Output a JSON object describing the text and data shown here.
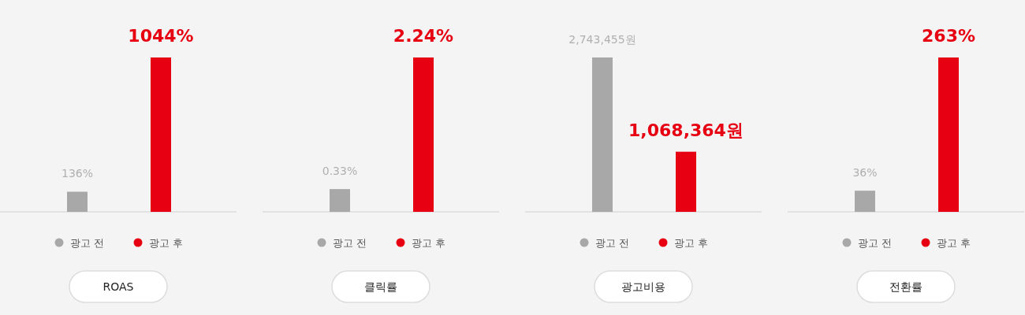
{
  "chart_data": [
    {
      "type": "bar",
      "title": "ROAS",
      "categories": [
        "광고 전",
        "광고 후"
      ],
      "colors": [
        "#a8a8a8",
        "#e60012"
      ],
      "values": [
        136,
        1044
      ],
      "value_labels": [
        "136%",
        "1044%"
      ]
    },
    {
      "type": "bar",
      "title": "클릭률",
      "categories": [
        "광고 전",
        "광고 후"
      ],
      "colors": [
        "#a8a8a8",
        "#e60012"
      ],
      "values": [
        0.33,
        2.24
      ],
      "value_labels": [
        "0.33%",
        "2.24%"
      ]
    },
    {
      "type": "bar",
      "title": "광고비용",
      "categories": [
        "광고 전",
        "광고 후"
      ],
      "colors": [
        "#a8a8a8",
        "#e60012"
      ],
      "values": [
        2743455,
        1068364
      ],
      "value_labels": [
        "2,743,455원",
        "1,068,364원"
      ]
    },
    {
      "type": "bar",
      "title": "전환률",
      "categories": [
        "광고 전",
        "광고 후"
      ],
      "colors": [
        "#a8a8a8",
        "#e60012"
      ],
      "values": [
        36,
        263
      ],
      "value_labels": [
        "36%",
        "263%"
      ]
    }
  ]
}
